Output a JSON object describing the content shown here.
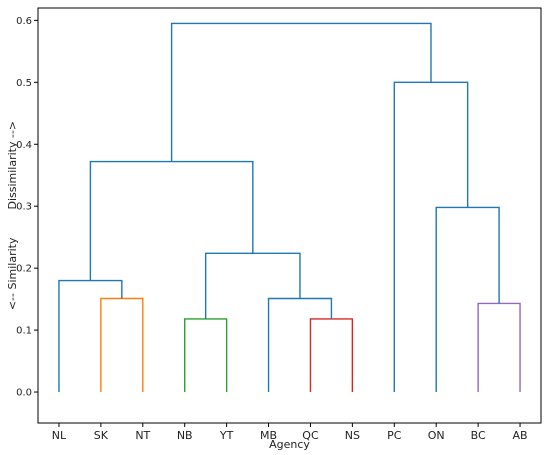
{
  "chart_data": {
    "type": "dendrogram",
    "title": "",
    "xlabel": "Agency",
    "ylabel": "<-- Similarity        Dissimilarity -->",
    "ylim": [
      -0.05,
      0.62
    ],
    "yticks": [
      "0.0",
      "0.1",
      "0.2",
      "0.3",
      "0.4",
      "0.5",
      "0.6"
    ],
    "categories": [
      "NL",
      "SK",
      "NT",
      "NB",
      "YT",
      "MB",
      "QC",
      "NS",
      "PC",
      "ON",
      "BC",
      "AB"
    ],
    "colors": {
      "above_threshold": "#1f77b4",
      "orange": "#ff7f0e",
      "green": "#2ca02c",
      "red": "#d62728",
      "purple": "#9467bd"
    },
    "links": [
      {
        "left": "SK",
        "right": "NT",
        "height": 0.151,
        "color": "#ff7f0e"
      },
      {
        "left": "NB",
        "right": "YT",
        "height": 0.118,
        "color": "#2ca02c"
      },
      {
        "left": "QC",
        "right": "NS",
        "height": 0.118,
        "color": "#d62728"
      },
      {
        "left": "BC",
        "right": "AB",
        "height": 0.143,
        "color": "#9467bd"
      },
      {
        "left": "MB",
        "right": "QC+NS",
        "height": 0.151,
        "color": "#1f77b4"
      },
      {
        "left": "NL",
        "right": "SK+NT",
        "height": 0.18,
        "color": "#1f77b4"
      },
      {
        "left": "NB+YT",
        "right": "MB+QC+NS",
        "height": 0.224,
        "color": "#1f77b4"
      },
      {
        "left": "ON",
        "right": "BC+AB",
        "height": 0.298,
        "color": "#1f77b4"
      },
      {
        "left": "NL+SK+NT",
        "right": "NB+YT+MB+QC+NS",
        "height": 0.372,
        "color": "#1f77b4"
      },
      {
        "left": "PC",
        "right": "ON+BC+AB",
        "height": 0.5,
        "color": "#1f77b4"
      },
      {
        "left": "NL+SK+NT+NB+YT+MB+QC+NS",
        "right": "PC+ON+BC+AB",
        "height": 0.595,
        "color": "#1f77b4"
      }
    ]
  }
}
